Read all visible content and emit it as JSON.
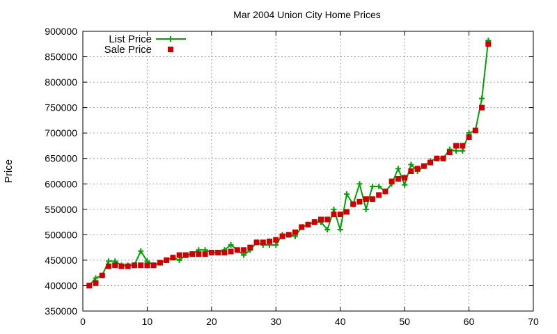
{
  "chart_data": {
    "type": "line",
    "title": "Mar 2004 Union City Home Prices",
    "xlabel": "",
    "ylabel": "Price",
    "xlim": [
      0,
      70
    ],
    "ylim": [
      350000,
      900000
    ],
    "x_ticks": [
      0,
      10,
      20,
      30,
      40,
      50,
      60,
      70
    ],
    "x_tick_labels": [
      "0",
      "10",
      "20",
      "30",
      "40",
      "50",
      "60",
      "70"
    ],
    "y_ticks": [
      350000,
      400000,
      450000,
      500000,
      550000,
      600000,
      650000,
      700000,
      750000,
      800000,
      850000,
      900000
    ],
    "y_tick_labels": [
      "350000",
      "400000",
      "450000",
      "500000",
      "550000",
      "600000",
      "650000",
      "700000",
      "750000",
      "800000",
      "850000",
      "900000"
    ],
    "grid": true,
    "legend_position": "top-left",
    "x": [
      1,
      2,
      3,
      4,
      5,
      6,
      7,
      8,
      9,
      10,
      11,
      12,
      13,
      14,
      15,
      16,
      17,
      18,
      19,
      20,
      21,
      22,
      23,
      24,
      25,
      26,
      27,
      28,
      29,
      30,
      31,
      32,
      33,
      34,
      35,
      36,
      37,
      38,
      39,
      40,
      41,
      42,
      43,
      44,
      45,
      46,
      47,
      48,
      49,
      50,
      51,
      52,
      53,
      54,
      55,
      56,
      57,
      58,
      59,
      60,
      61,
      62,
      63
    ],
    "series": [
      {
        "name": "List Price",
        "style": "linespoints",
        "marker": "plus",
        "color": "#00a000",
        "values": [
          400000,
          415000,
          420000,
          448000,
          448000,
          440000,
          440000,
          440000,
          468000,
          448000,
          440000,
          445000,
          450000,
          455000,
          450000,
          460000,
          462000,
          470000,
          470000,
          465000,
          465000,
          470000,
          480000,
          470000,
          460000,
          470000,
          485000,
          480000,
          480000,
          480000,
          500000,
          500000,
          497000,
          515000,
          520000,
          525000,
          525000,
          510000,
          550000,
          510000,
          580000,
          560000,
          600000,
          550000,
          595000,
          595000,
          585000,
          600000,
          630000,
          598000,
          638000,
          625000,
          635000,
          645000,
          650000,
          650000,
          668000,
          665000,
          665000,
          700000,
          705000,
          768000,
          882000
        ]
      },
      {
        "name": "Sale Price",
        "style": "points",
        "marker": "square",
        "color": "#cc0000",
        "values": [
          400000,
          405000,
          420000,
          438000,
          440000,
          438000,
          438000,
          440000,
          440000,
          440000,
          440000,
          445000,
          450000,
          455000,
          460000,
          460000,
          462000,
          462000,
          462000,
          465000,
          465000,
          465000,
          467000,
          470000,
          470000,
          475000,
          485000,
          485000,
          487000,
          490000,
          497000,
          500000,
          505000,
          515000,
          520000,
          525000,
          530000,
          530000,
          540000,
          540000,
          545000,
          560000,
          565000,
          570000,
          570000,
          578000,
          585000,
          605000,
          610000,
          612000,
          625000,
          630000,
          635000,
          642000,
          650000,
          650000,
          662000,
          675000,
          675000,
          692000,
          705000,
          750000,
          875000
        ]
      }
    ]
  }
}
